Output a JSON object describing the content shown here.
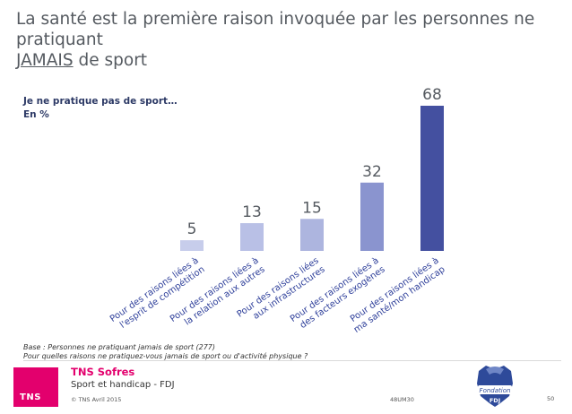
{
  "title": {
    "part1": "La santé est la première raison invoquée par les personnes ne pratiquant",
    "underlined": "JAMAIS",
    "part2": " de sport"
  },
  "subtitle": {
    "line1": "Je ne pratique pas de sport…",
    "line2": "En %"
  },
  "chart_data": {
    "type": "bar",
    "title": "Je ne pratique pas de sport… En %",
    "ylabel": "En %",
    "xlabel": "",
    "ylim": [
      0,
      68
    ],
    "grid": false,
    "categories": [
      [
        "Pour des raisons liées à",
        "l'esprit de compétition"
      ],
      [
        "Pour des raisons liées à",
        "la relation aux autres"
      ],
      [
        "Pour des raisons liées",
        "aux infrastructures"
      ],
      [
        "Pour des raisons liées à",
        "des facteurs exogènes"
      ],
      [
        "Pour des raisons liées à",
        "ma santé/mon handicap"
      ]
    ],
    "values": [
      5,
      13,
      15,
      32,
      68
    ],
    "colors": [
      "#c7cdeb",
      "#b9c0e6",
      "#adb5df",
      "#8a94cf",
      "#4450a0"
    ]
  },
  "footnote": {
    "line1": "Base : Personnes ne pratiquant jamais de sport (277)",
    "line2": "Pour quelles raisons ne pratiquez-vous jamais de sport ou d'activité physique ?"
  },
  "footer": {
    "logo_text": "TNS",
    "brand": "TNS Sofres",
    "project": "Sport et handicap - FDJ",
    "copyright": "© TNS Avril 2015",
    "ref": "48UM30",
    "partner_logo": {
      "line1": "Fondation",
      "line2": "FDJ",
      "color": "#2e4a9a"
    },
    "page": "50"
  }
}
